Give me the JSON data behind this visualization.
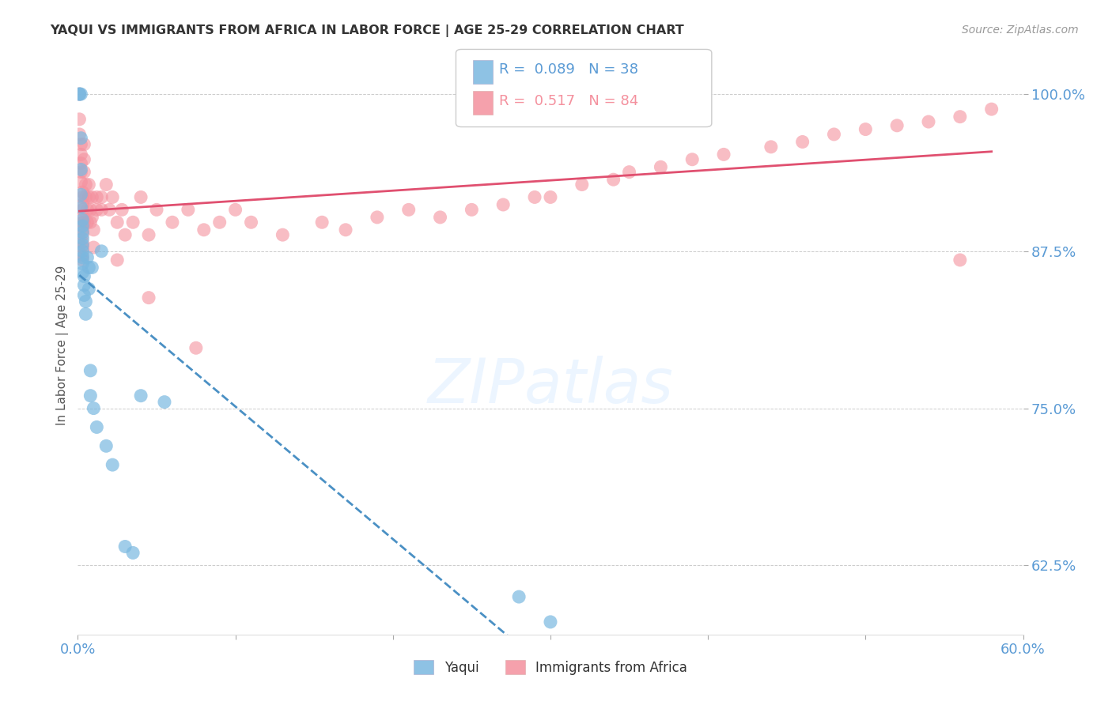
{
  "title": "YAQUI VS IMMIGRANTS FROM AFRICA IN LABOR FORCE | AGE 25-29 CORRELATION CHART",
  "source": "Source: ZipAtlas.com",
  "ylabel": "In Labor Force | Age 25-29",
  "xlim": [
    0.0,
    0.6
  ],
  "ylim": [
    0.57,
    1.03
  ],
  "yticks": [
    0.625,
    0.75,
    0.875,
    1.0
  ],
  "ytick_labels": [
    "62.5%",
    "75.0%",
    "87.5%",
    "100.0%"
  ],
  "xticks": [
    0.0,
    0.1,
    0.2,
    0.3,
    0.4,
    0.5,
    0.6
  ],
  "xtick_labels": [
    "0.0%",
    "",
    "",
    "",
    "",
    "",
    "60.0%"
  ],
  "blue_color": "#7ab8e0",
  "pink_color": "#f4919e",
  "trend_blue_color": "#4a90c4",
  "trend_pink_color": "#e05070",
  "axis_color": "#5b9bd5",
  "watermark": "ZIPatlas",
  "blue_R": 0.089,
  "blue_N": 38,
  "pink_R": 0.517,
  "pink_N": 84,
  "blue_x": [
    0.001,
    0.001,
    0.002,
    0.002,
    0.002,
    0.002,
    0.002,
    0.003,
    0.003,
    0.003,
    0.003,
    0.003,
    0.003,
    0.003,
    0.003,
    0.003,
    0.004,
    0.004,
    0.004,
    0.005,
    0.005,
    0.006,
    0.007,
    0.007,
    0.008,
    0.008,
    0.009,
    0.01,
    0.012,
    0.015,
    0.018,
    0.022,
    0.03,
    0.035,
    0.04,
    0.055,
    0.28,
    0.3
  ],
  "blue_y": [
    1.0,
    1.0,
    1.0,
    0.965,
    0.94,
    0.92,
    0.91,
    0.9,
    0.895,
    0.89,
    0.885,
    0.88,
    0.875,
    0.87,
    0.865,
    0.858,
    0.855,
    0.848,
    0.84,
    0.835,
    0.825,
    0.87,
    0.862,
    0.845,
    0.78,
    0.76,
    0.862,
    0.75,
    0.735,
    0.875,
    0.72,
    0.705,
    0.64,
    0.635,
    0.76,
    0.755,
    0.6,
    0.58
  ],
  "pink_x": [
    0.001,
    0.001,
    0.001,
    0.002,
    0.002,
    0.002,
    0.002,
    0.002,
    0.003,
    0.003,
    0.003,
    0.003,
    0.003,
    0.003,
    0.003,
    0.003,
    0.003,
    0.003,
    0.003,
    0.003,
    0.004,
    0.004,
    0.004,
    0.004,
    0.005,
    0.005,
    0.006,
    0.006,
    0.007,
    0.007,
    0.008,
    0.008,
    0.009,
    0.009,
    0.01,
    0.01,
    0.012,
    0.012,
    0.015,
    0.015,
    0.018,
    0.02,
    0.022,
    0.025,
    0.028,
    0.03,
    0.035,
    0.04,
    0.045,
    0.05,
    0.06,
    0.07,
    0.08,
    0.09,
    0.1,
    0.11,
    0.13,
    0.155,
    0.17,
    0.19,
    0.21,
    0.23,
    0.25,
    0.27,
    0.29,
    0.3,
    0.32,
    0.34,
    0.35,
    0.37,
    0.39,
    0.41,
    0.44,
    0.46,
    0.48,
    0.5,
    0.52,
    0.54,
    0.56,
    0.58,
    0.025,
    0.045,
    0.075,
    0.56
  ],
  "pink_y": [
    1.0,
    0.98,
    0.968,
    0.96,
    0.952,
    0.945,
    0.938,
    0.93,
    0.922,
    0.918,
    0.912,
    0.908,
    0.902,
    0.898,
    0.892,
    0.888,
    0.882,
    0.878,
    0.872,
    0.868,
    0.96,
    0.948,
    0.938,
    0.898,
    0.928,
    0.918,
    0.908,
    0.898,
    0.928,
    0.918,
    0.908,
    0.898,
    0.918,
    0.902,
    0.892,
    0.878,
    0.918,
    0.908,
    0.918,
    0.908,
    0.928,
    0.908,
    0.918,
    0.898,
    0.908,
    0.888,
    0.898,
    0.918,
    0.888,
    0.908,
    0.898,
    0.908,
    0.892,
    0.898,
    0.908,
    0.898,
    0.888,
    0.898,
    0.892,
    0.902,
    0.908,
    0.902,
    0.908,
    0.912,
    0.918,
    0.918,
    0.928,
    0.932,
    0.938,
    0.942,
    0.948,
    0.952,
    0.958,
    0.962,
    0.968,
    0.972,
    0.975,
    0.978,
    0.982,
    0.988,
    0.868,
    0.838,
    0.798,
    0.868
  ]
}
